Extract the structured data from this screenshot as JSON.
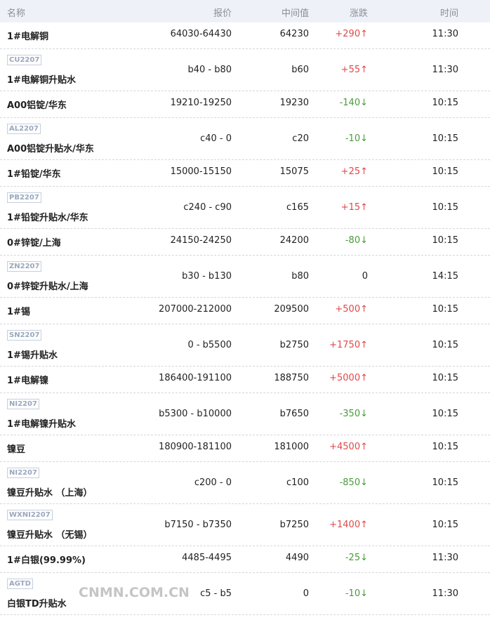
{
  "header": {
    "name": "名称",
    "price": "报价",
    "mid": "中间值",
    "change": "涨跌",
    "time": "时间"
  },
  "colors": {
    "up": "#e04848",
    "down": "#4a9a3c",
    "header_bg": "#eef2f8"
  },
  "rows": [
    {
      "badge": "",
      "name": "1#电解铜",
      "price": "64030-64430",
      "mid": "64230",
      "change": "+290↑",
      "dir": "up",
      "time": "11:30"
    },
    {
      "badge": "CU2207",
      "name": "1#电解铜升贴水",
      "price": "b40 - b80",
      "mid": "b60",
      "change": "+55↑",
      "dir": "up",
      "time": "11:30"
    },
    {
      "badge": "",
      "name": "A00铝锭/华东",
      "price": "19210-19250",
      "mid": "19230",
      "change": "-140↓",
      "dir": "down",
      "time": "10:15"
    },
    {
      "badge": "AL2207",
      "name": "A00铝锭升贴水/华东",
      "price": "c40 - 0",
      "mid": "c20",
      "change": "-10↓",
      "dir": "down",
      "time": "10:15"
    },
    {
      "badge": "",
      "name": "1#铅锭/华东",
      "price": "15000-15150",
      "mid": "15075",
      "change": "+25↑",
      "dir": "up",
      "time": "10:15"
    },
    {
      "badge": "PB2207",
      "name": "1#铅锭升贴水/华东",
      "price": "c240 - c90",
      "mid": "c165",
      "change": "+15↑",
      "dir": "up",
      "time": "10:15"
    },
    {
      "badge": "",
      "name": "0#锌锭/上海",
      "price": "24150-24250",
      "mid": "24200",
      "change": "-80↓",
      "dir": "down",
      "time": "10:15"
    },
    {
      "badge": "ZN2207",
      "name": "0#锌锭升贴水/上海",
      "price": "b30 - b130",
      "mid": "b80",
      "change": "0",
      "dir": "flat",
      "time": "14:15"
    },
    {
      "badge": "",
      "name": "1#锡",
      "price": "207000-212000",
      "mid": "209500",
      "change": "+500↑",
      "dir": "up",
      "time": "10:15"
    },
    {
      "badge": "SN2207",
      "name": "1#锡升贴水",
      "price": "0 - b5500",
      "mid": "b2750",
      "change": "+1750↑",
      "dir": "up",
      "time": "10:15"
    },
    {
      "badge": "",
      "name": "1#电解镍",
      "price": "186400-191100",
      "mid": "188750",
      "change": "+5000↑",
      "dir": "up",
      "time": "10:15"
    },
    {
      "badge": "NI2207",
      "name": "1#电解镍升贴水",
      "price": "b5300 - b10000",
      "mid": "b7650",
      "change": "-350↓",
      "dir": "down",
      "time": "10:15"
    },
    {
      "badge": "",
      "name": "镍豆",
      "price": "180900-181100",
      "mid": "181000",
      "change": "+4500↑",
      "dir": "up",
      "time": "10:15"
    },
    {
      "badge": "NI2207",
      "name": "镍豆升贴水 （上海）",
      "price": "c200 - 0",
      "mid": "c100",
      "change": "-850↓",
      "dir": "down",
      "time": "10:15"
    },
    {
      "badge": "WXNI2207",
      "name": "镍豆升贴水 （无锡）",
      "price": "b7150 - b7350",
      "mid": "b7250",
      "change": "+1400↑",
      "dir": "up",
      "time": "10:15"
    },
    {
      "badge": "",
      "name": "1#白银(99.99%)",
      "price": "4485-4495",
      "mid": "4490",
      "change": "-25↓",
      "dir": "down",
      "time": "11:30"
    },
    {
      "badge": "AGTD",
      "name": "白银TD升贴水",
      "price": "c5 - b5",
      "mid": "0",
      "change": "-10↓",
      "dir": "down",
      "time": "11:30"
    }
  ],
  "watermark": "CNMN.COM.CN"
}
